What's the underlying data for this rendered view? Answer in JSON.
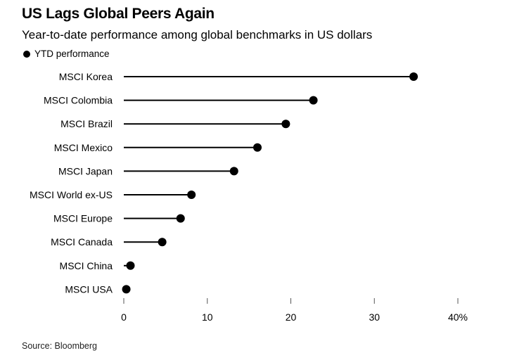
{
  "chart_data": {
    "type": "lollipop",
    "title": "US Lags Global Peers Again",
    "subtitle": "Year-to-date performance among global benchmarks in US dollars",
    "legend": [
      {
        "name": "YTD performance",
        "color": "#000000",
        "placement": "top-left"
      }
    ],
    "categories": [
      "MSCI Korea",
      "MSCI Colombia",
      "MSCI Brazil",
      "MSCI Mexico",
      "MSCI Japan",
      "MSCI World ex-US",
      "MSCI Europe",
      "MSCI Canada",
      "MSCI China",
      "MSCI USA"
    ],
    "series": [
      {
        "name": "YTD performance",
        "values": [
          34.7,
          22.7,
          19.4,
          16.0,
          13.2,
          8.1,
          6.8,
          4.6,
          0.8,
          0.3
        ]
      }
    ],
    "xlabel": "",
    "ylabel": "",
    "xlim": [
      0,
      40
    ],
    "x_ticks": [
      0,
      10,
      20,
      30,
      40
    ],
    "x_tick_labels": [
      "0",
      "10",
      "20",
      "30",
      "40%"
    ],
    "grid": false,
    "source": "Source: Bloomberg"
  }
}
